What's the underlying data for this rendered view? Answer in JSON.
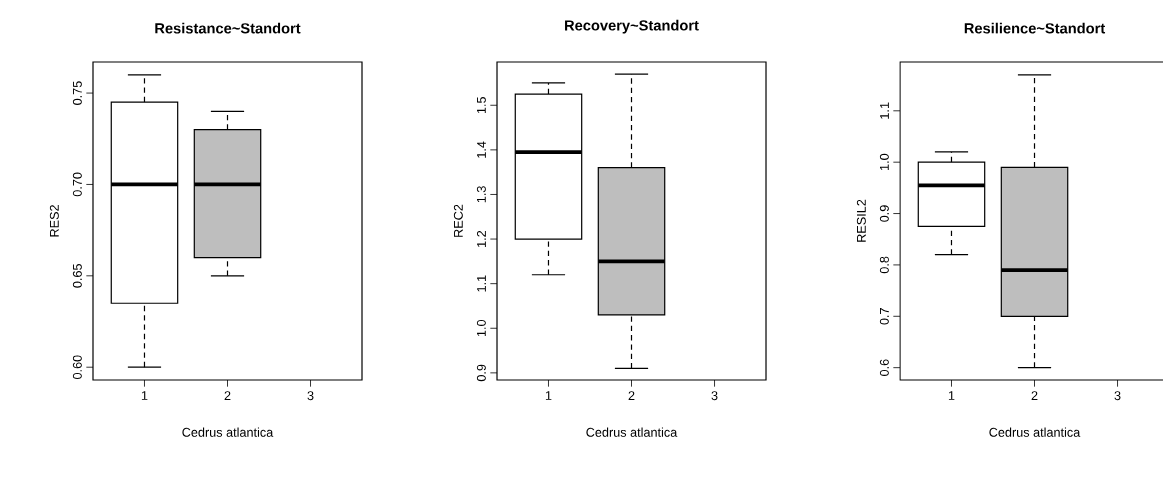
{
  "chart_data": [
    {
      "type": "box",
      "title": "Resistance~Standort",
      "xlabel": "Cedrus atlantica",
      "ylabel": "RES2",
      "categories": [
        "1",
        "2",
        "3"
      ],
      "colors": [
        "#ffffff",
        "#bebebe",
        null
      ],
      "ylim": [
        0.593,
        0.767
      ],
      "yticks": [
        {
          "value": 0.6,
          "label": "0.60"
        },
        0.65,
        {
          "value": 0.7,
          "label": "0.70"
        },
        0.75
      ],
      "boxes": [
        {
          "low": 0.6,
          "q1": 0.635,
          "median": 0.7,
          "q3": 0.745,
          "high": 0.76
        },
        {
          "low": 0.65,
          "q1": 0.66,
          "median": 0.7,
          "q3": 0.73,
          "high": 0.74
        },
        null
      ]
    },
    {
      "type": "box",
      "title": "Recovery~Standort",
      "xlabel": "Cedrus atlantica",
      "ylabel": "REC2",
      "categories": [
        "1",
        "2",
        "3"
      ],
      "colors": [
        "#ffffff",
        "#bebebe",
        null
      ],
      "ylim": [
        0.884,
        1.597
      ],
      "yticks": [
        0.9,
        {
          "value": 1.0,
          "label": "1.0"
        },
        1.1,
        1.2,
        1.3,
        1.4,
        1.5
      ],
      "boxes": [
        {
          "low": 1.12,
          "q1": 1.2,
          "median": 1.395,
          "q3": 1.525,
          "high": 1.55
        },
        {
          "low": 0.91,
          "q1": 1.03,
          "median": 1.15,
          "q3": 1.36,
          "high": 1.57
        },
        null
      ]
    },
    {
      "type": "box",
      "title": "Resilience~Standort",
      "xlabel": "Cedrus atlantica",
      "ylabel": "RESIL2",
      "categories": [
        "1",
        "2",
        "3"
      ],
      "colors": [
        "#ffffff",
        "#bebebe",
        null
      ],
      "ylim": [
        0.576,
        1.195
      ],
      "yticks": [
        0.6,
        0.7,
        0.8,
        0.9,
        {
          "value": 1.0,
          "label": "1.0"
        },
        1.1
      ],
      "boxes": [
        {
          "low": 0.82,
          "q1": 0.875,
          "median": 0.955,
          "q3": 1.0,
          "high": 1.02
        },
        {
          "low": 0.6,
          "q1": 0.7,
          "median": 0.79,
          "q3": 0.99,
          "high": 1.17
        },
        null
      ]
    }
  ]
}
